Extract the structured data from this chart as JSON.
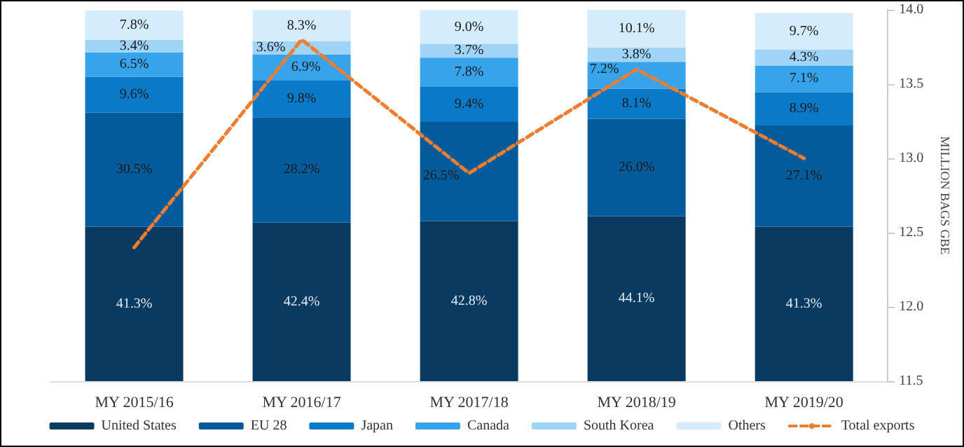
{
  "chart_data": {
    "type": "bar",
    "stacked": true,
    "categories": [
      "MY 2015/16",
      "MY 2016/17",
      "MY 2017/18",
      "MY 2018/19",
      "MY 2019/20"
    ],
    "series": [
      {
        "name": "United States",
        "color": "#0a3a60",
        "values": [
          41.3,
          42.4,
          42.8,
          44.1,
          41.3
        ],
        "value_labels": [
          "41.3%",
          "42.4%",
          "42.8%",
          "44.1%",
          "41.3%"
        ]
      },
      {
        "name": "EU 28",
        "color": "#035b9b",
        "values": [
          30.5,
          28.2,
          26.5,
          26.0,
          27.1
        ],
        "value_labels": [
          "30.5%",
          "28.2%",
          "26.5%",
          "26.0%",
          "27.1%"
        ]
      },
      {
        "name": "Japan",
        "color": "#0a79c8",
        "values": [
          9.6,
          9.8,
          9.4,
          8.1,
          8.9
        ],
        "value_labels": [
          "9.6%",
          "9.8%",
          "9.4%",
          "8.1%",
          "8.9%"
        ]
      },
      {
        "name": "Canada",
        "color": "#36a3ea",
        "values": [
          6.5,
          6.9,
          7.8,
          7.2,
          7.1
        ],
        "value_labels": [
          "6.5%",
          "6.9%",
          "7.8%",
          "7.2%",
          "7.1%"
        ]
      },
      {
        "name": "South Korea",
        "color": "#9fd4f7",
        "values": [
          3.4,
          3.6,
          3.7,
          3.8,
          4.3
        ],
        "value_labels": [
          "3.4%",
          "3.6%",
          "3.7%",
          "3.8%",
          "4.3%"
        ]
      },
      {
        "name": "Others",
        "color": "#d4ecfc",
        "values": [
          7.8,
          8.3,
          9.0,
          10.1,
          9.7
        ],
        "value_labels": [
          "7.8%",
          "8.3%",
          "9.0%",
          "10.1%",
          "9.7%"
        ]
      },
      {
        "name": "Total exports",
        "type": "line",
        "axis": "y2",
        "color": "#ed7d31",
        "line_style": "dashed",
        "marker": "none",
        "values": [
          12.4,
          13.8,
          12.9,
          13.6,
          13.0
        ]
      }
    ],
    "y2lim": [
      11.5,
      14.0
    ],
    "y2ticks": [
      11.5,
      {
        "value": 12,
        "label": "12.0"
      },
      12.5,
      {
        "value": 13,
        "label": "13.0"
      },
      13.5,
      {
        "value": 14,
        "label": "14.0"
      }
    ],
    "y2label": "MILLION BAGS GBE",
    "legend": "bottom",
    "grid": false
  }
}
